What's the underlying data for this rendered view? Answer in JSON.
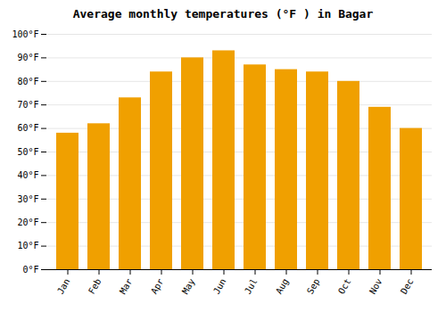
{
  "chart_data": {
    "type": "bar",
    "title": "Average monthly temperatures (°F ) in Bagar",
    "categories": [
      "Jan",
      "Feb",
      "Mar",
      "Apr",
      "May",
      "Jun",
      "Jul",
      "Aug",
      "Sep",
      "Oct",
      "Nov",
      "Dec"
    ],
    "values": [
      58,
      62,
      73,
      84,
      90,
      93,
      87,
      85,
      84,
      80,
      69,
      60
    ],
    "color": "#F0A000",
    "ylim": [
      0,
      100
    ],
    "yticks": [
      {
        "value": 0,
        "label": "0°F"
      },
      {
        "value": 10,
        "label": "10°F"
      },
      {
        "value": 20,
        "label": "20°F"
      },
      {
        "value": 30,
        "label": "30°F"
      },
      {
        "value": 40,
        "label": "40°F"
      },
      {
        "value": 50,
        "label": "50°F"
      },
      {
        "value": 60,
        "label": "60°F"
      },
      {
        "value": 70,
        "label": "70°F"
      },
      {
        "value": 80,
        "label": "80°F"
      },
      {
        "value": 90,
        "label": "90°F"
      },
      {
        "value": 100,
        "label": "100°F"
      }
    ],
    "grid": true
  }
}
